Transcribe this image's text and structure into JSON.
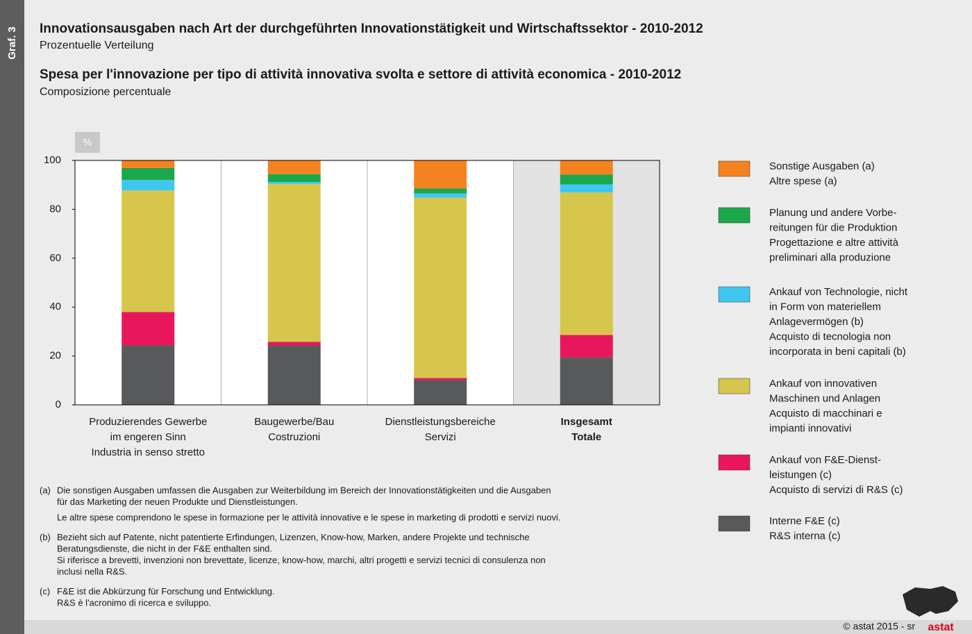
{
  "chart_data": {
    "type": "stacked_bar",
    "figure_label": "Graf. 3",
    "title": "Innovationsausgaben nach Art der durchgeführten Innovationstätigkeit und Wirtschaftssektor - 2010-2012",
    "subtitle": "Prozentuelle Verteilung",
    "title2": "Spesa per l'innovazione per tipo di attività innovativa svolta e settore di attività economica - 2010-2012",
    "subtitle2": "Composizione percentuale",
    "y_unit": "%",
    "categories": [
      [
        "Produzierendes Gewerbe",
        "im engeren Sinn",
        "Industria in senso stretto"
      ],
      [
        "Baugewerbe/Bau",
        "Costruzioni"
      ],
      [
        "Dienstleistungsbereiche",
        "Servizi"
      ],
      [
        "Insgesamt",
        "Totale"
      ]
    ],
    "series": [
      {
        "name": [
          "Sonstige Ausgaben (a)",
          "Altre spese (a)"
        ],
        "color": "#f58220",
        "values": [
          3.1,
          5.6,
          11.5,
          5.8
        ]
      },
      {
        "name": [
          "Planung und andere Vorbe-",
          "reitungen für die Produktion",
          "Progettazione e altre attività",
          "preliminari alla produzione"
        ],
        "color": "#1aa84b",
        "values": [
          4.9,
          3.2,
          2.0,
          4.0
        ]
      },
      {
        "name": [
          "Ankauf von Technologie, nicht",
          "in Form von materiellem",
          "Anlagevermögen (b)",
          "Acquisto di tecnologia non",
          "incorporata in beni capitali (b)"
        ],
        "color": "#41c6f2",
        "values": [
          4.3,
          0.8,
          1.7,
          3.3
        ]
      },
      {
        "name": [
          "Ankauf von innovativen",
          "Maschinen und Anlagen",
          "Acquisto di macchinari e",
          "impianti innovativi"
        ],
        "color": "#d6c64b",
        "values": [
          49.7,
          64.6,
          73.8,
          58.3
        ]
      },
      {
        "name": [
          "Ankauf von F&E-Dienst-",
          "leistungen (c)",
          "Acquisto di servizi di R&S (c)"
        ],
        "color": "#e8175d",
        "values": [
          13.7,
          1.5,
          0.9,
          9.2
        ]
      },
      {
        "name": [
          "Interne F&E (c)",
          "R&S interna (c)"
        ],
        "color": "#58595b",
        "values": [
          24.3,
          24.3,
          10.1,
          19.4
        ]
      }
    ],
    "ylim": [
      0,
      100
    ],
    "yticks": [
      0,
      20,
      40,
      60,
      80,
      100
    ],
    "legend": "right",
    "notes": [
      {
        "label": "(a)",
        "lines": [
          "Die sonstigen Ausgaben umfassen die Ausgaben zur Weiterbildung im Bereich der Innovationstätigkeiten und die Ausgaben",
          "für das Marketing der neuen Produkte und Dienstleistungen.",
          "Le altre spese comprendono le spese in formazione per le attività innovative e le spese in marketing di prodotti e servizi nuovi."
        ]
      },
      {
        "label": "(b)",
        "lines": [
          "Bezieht sich auf Patente, nicht patentierte Erfindungen, Lizenzen, Know-how, Marken, andere Projekte und technische",
          "Beratungsdienste, die nicht in der F&E enthalten sind.",
          "Si riferisce a brevetti, invenzioni non brevettate, licenze, know-how, marchi, altri progetti e servizi tecnici di consulenza non",
          "inclusi nella R&S."
        ]
      },
      {
        "label": "(c)",
        "lines": [
          "F&E ist die Abkürzung für Forschung und Entwicklung.",
          "R&S è l'acronimo di ricerca e sviluppo."
        ]
      }
    ],
    "credit": "© astat 2015 - sr",
    "logo": "astat"
  }
}
